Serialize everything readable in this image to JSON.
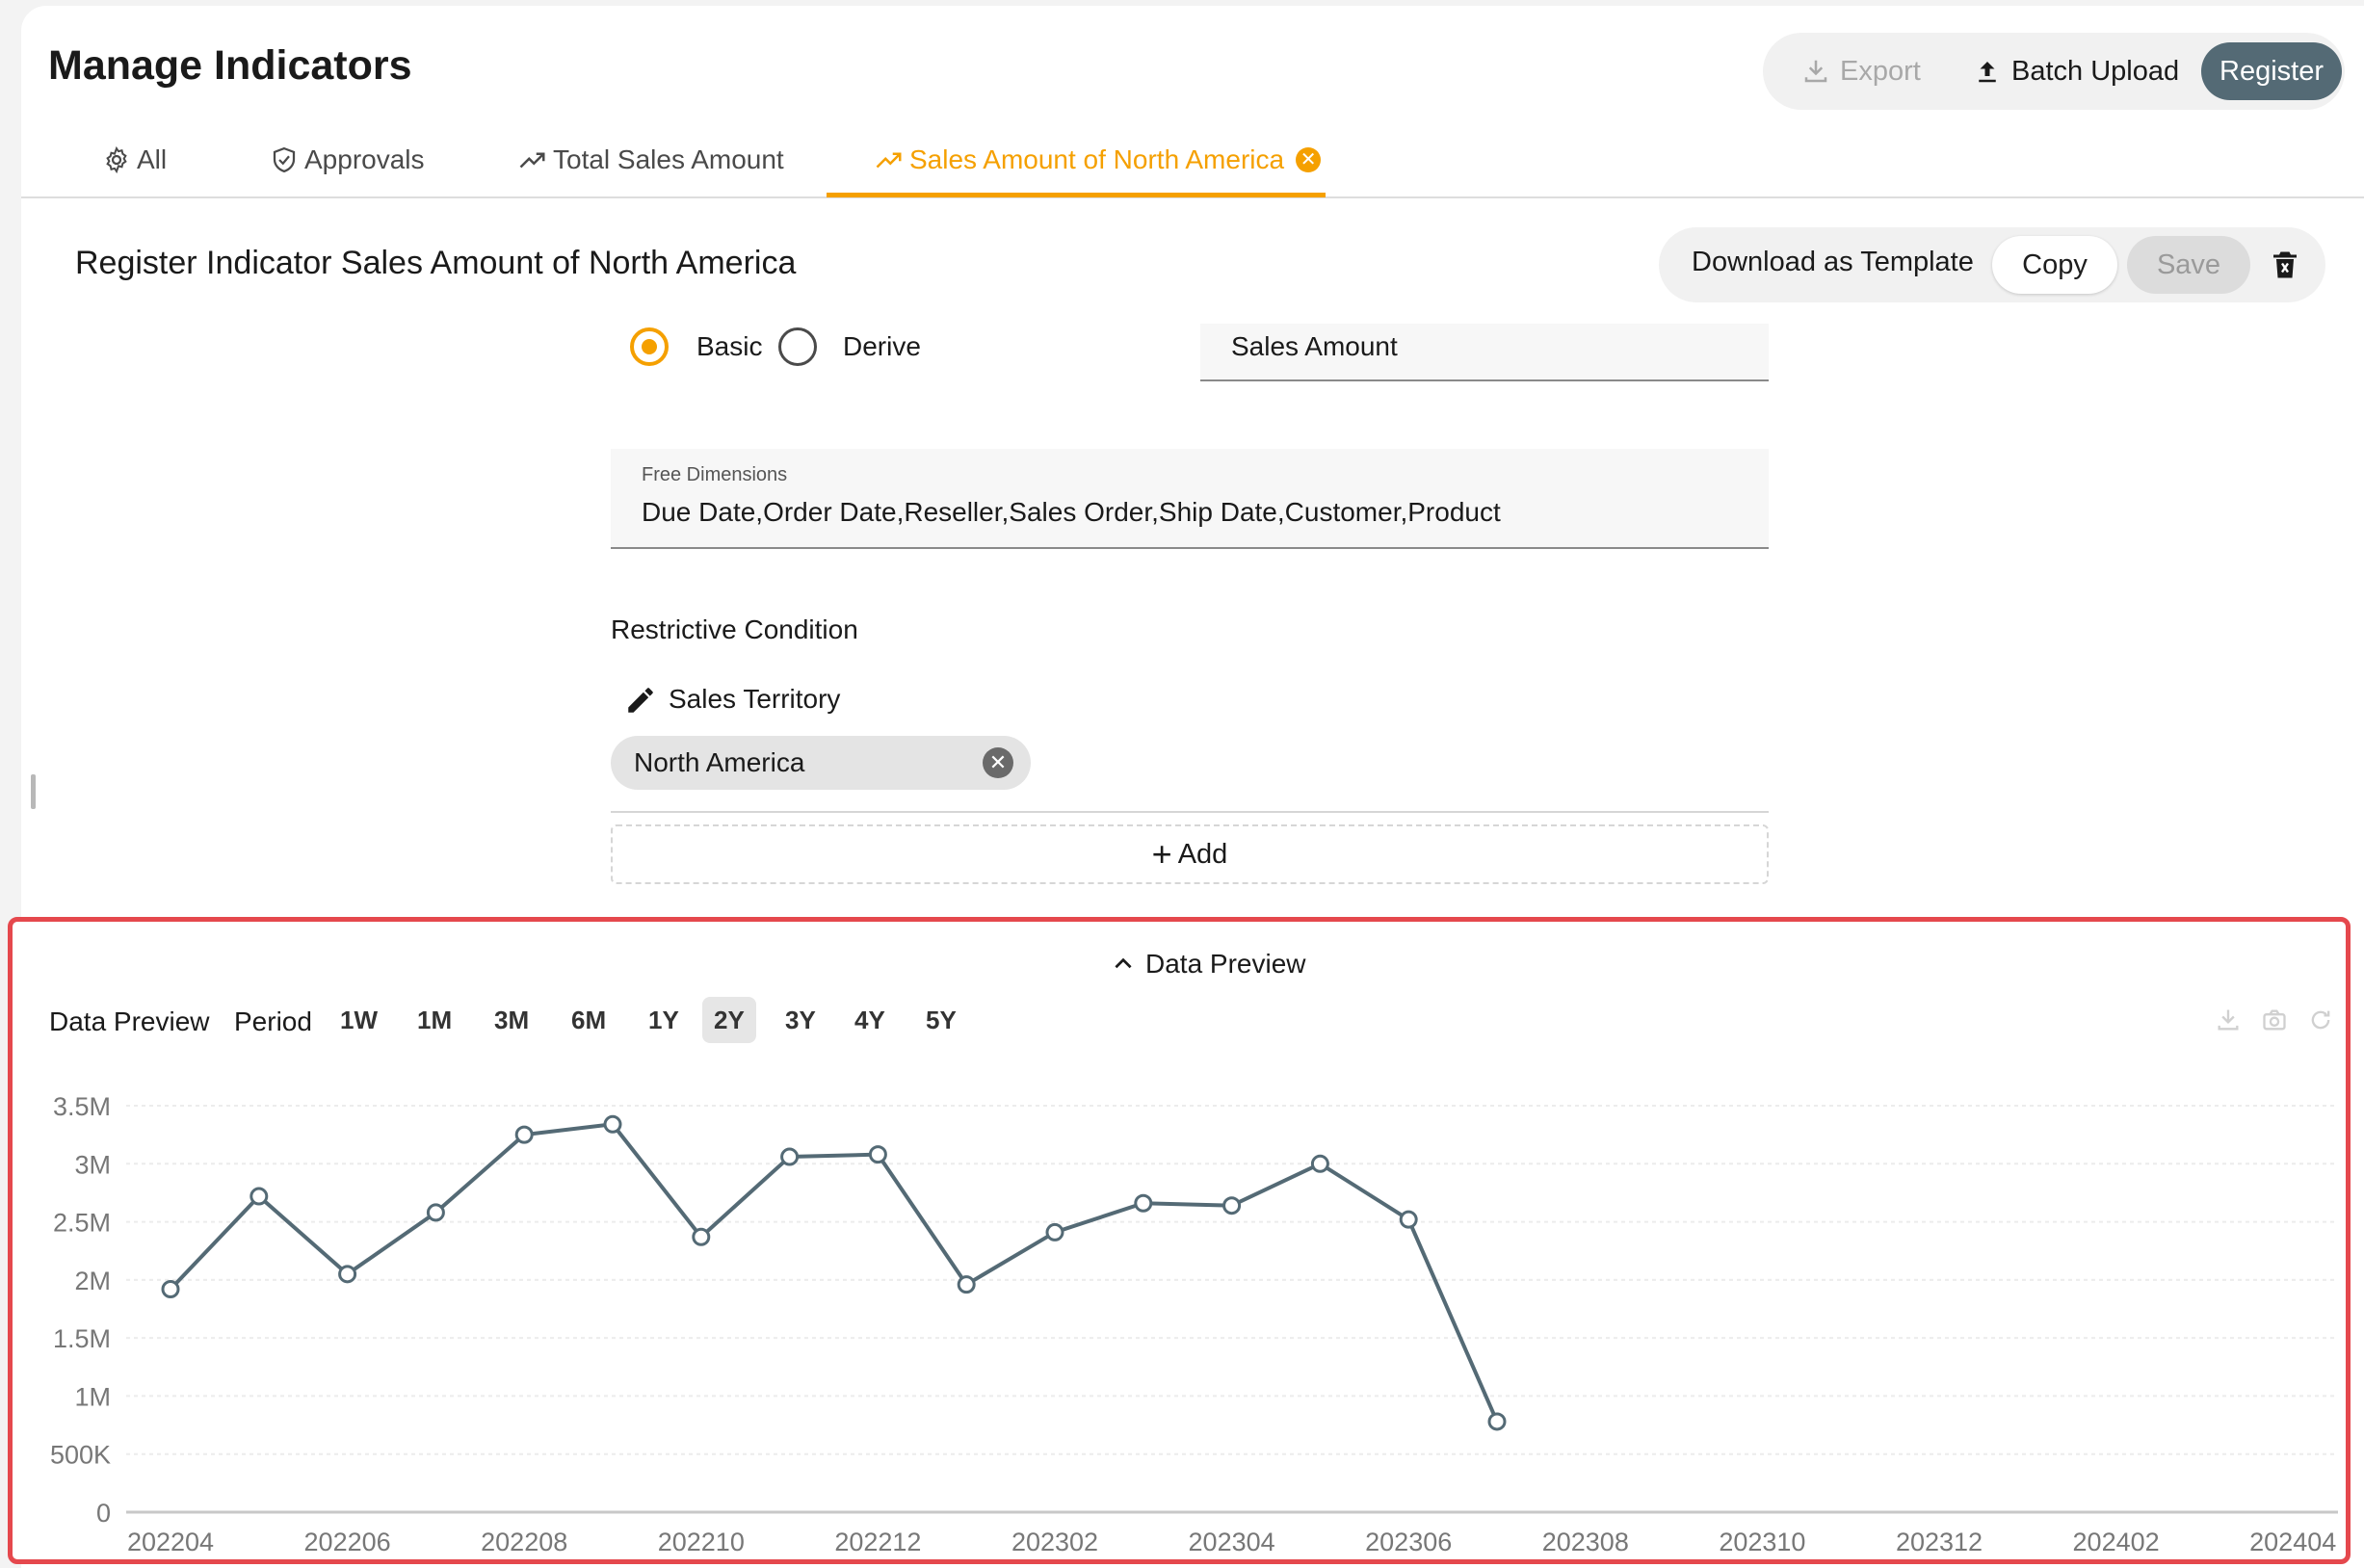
{
  "page": {
    "title": "Manage Indicators",
    "actions": {
      "export": "Export",
      "batch_upload": "Batch Upload",
      "register": "Register"
    }
  },
  "tabs": [
    {
      "label": "All",
      "icon": "gear-icon"
    },
    {
      "label": "Approvals",
      "icon": "shield-check-icon"
    },
    {
      "label": "Total Sales Amount",
      "icon": "trend-up-icon"
    },
    {
      "label": "Sales Amount of North America",
      "icon": "trend-up-icon",
      "active": true,
      "closable": true
    }
  ],
  "form": {
    "title": "Register Indicator Sales Amount of North America",
    "actions": {
      "download_template": "Download as Template",
      "copy": "Copy",
      "save": "Save"
    },
    "type_options": [
      {
        "label": "Basic",
        "selected": true
      },
      {
        "label": "Derive",
        "selected": false
      }
    ],
    "indicator_value": "Sales Amount",
    "free_dimensions": {
      "label": "Free Dimensions",
      "value": "Due Date,Order Date,Reseller,Sales Order,Ship Date,Customer,Product"
    },
    "restrictive_condition": {
      "title": "Restrictive Condition",
      "dimension": "Sales Territory",
      "chip": "North America",
      "add_label": "Add"
    }
  },
  "preview": {
    "toggle_label": "Data Preview",
    "toolbar_label": "Data Preview",
    "period_label": "Period",
    "periods": [
      "1W",
      "1M",
      "3M",
      "6M",
      "1Y",
      "2Y",
      "3Y",
      "4Y",
      "5Y"
    ],
    "active_period": "2Y",
    "tool_icons": [
      "download-icon",
      "camera-icon",
      "refresh-icon"
    ]
  },
  "chart_data": {
    "type": "line",
    "y_tick_labels": [
      "0",
      "500K",
      "1M",
      "1.5M",
      "2M",
      "2.5M",
      "3M",
      "3.5M"
    ],
    "y_ticks": [
      0,
      500000,
      1000000,
      1500000,
      2000000,
      2500000,
      3000000,
      3500000
    ],
    "ylim": [
      0,
      3500000
    ],
    "x_tick_labels": [
      "202204",
      "202206",
      "202208",
      "202210",
      "202212",
      "202302",
      "202304",
      "202306",
      "202308",
      "202310",
      "202312",
      "202402",
      "202404"
    ],
    "x": [
      "202204",
      "202205",
      "202206",
      "202207",
      "202208",
      "202209",
      "202210",
      "202211",
      "202212",
      "202301",
      "202302",
      "202303",
      "202304",
      "202305",
      "202306",
      "202307"
    ],
    "values": [
      1920000,
      2720000,
      2050000,
      2580000,
      3250000,
      3340000,
      2370000,
      3060000,
      3080000,
      1960000,
      2410000,
      2660000,
      2640000,
      3000000,
      2520000,
      780000
    ],
    "line_color": "#546a75",
    "grid": true
  }
}
